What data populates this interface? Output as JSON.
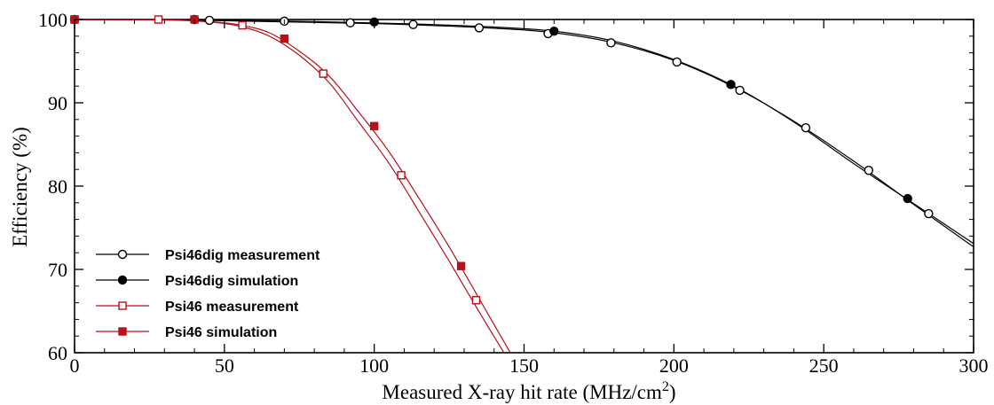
{
  "chart_data": {
    "type": "line",
    "xlabel": "Measured X-ray hit rate (MHz/cm",
    "xlabel_sup": "2",
    "xlabel_end": ")",
    "ylabel": "Efficiency (%)",
    "xlim": [
      0,
      300
    ],
    "ylim": [
      60,
      100
    ],
    "xticks": [
      "0",
      "50",
      "100",
      "150",
      "200",
      "250",
      "300"
    ],
    "yticks": [
      "60",
      "70",
      "80",
      "90",
      "100"
    ],
    "grid": false,
    "legend_position": "bottom-left",
    "series": [
      {
        "name": "Psi46dig measurement",
        "color": "#000000",
        "marker": "open-circle",
        "x": [
          0,
          45,
          70,
          92,
          113,
          135,
          158,
          179,
          201,
          222,
          244,
          265,
          285
        ],
        "y": [
          100,
          99.9,
          99.8,
          99.6,
          99.4,
          99.0,
          98.3,
          97.2,
          94.9,
          91.5,
          87.0,
          81.9,
          76.7
        ],
        "curve_x": [
          0,
          30,
          50,
          80,
          110,
          140,
          160,
          180,
          200,
          220,
          240,
          260,
          280,
          300
        ],
        "curve_y": [
          100,
          99.95,
          99.85,
          99.65,
          99.4,
          98.95,
          98.4,
          97.2,
          95.1,
          91.9,
          87.8,
          83.0,
          77.8,
          72.7
        ]
      },
      {
        "name": "Psi46dig simulation",
        "color": "#000000",
        "marker": "filled-circle",
        "x": [
          40,
          100,
          160,
          219,
          278
        ],
        "y": [
          100,
          99.7,
          98.6,
          92.2,
          78.5
        ],
        "curve_x": [
          0,
          30,
          50,
          80,
          110,
          140,
          160,
          180,
          200,
          220,
          240,
          260,
          280,
          300
        ],
        "curve_y": [
          100,
          99.97,
          99.9,
          99.75,
          99.5,
          99.1,
          98.6,
          97.4,
          95.2,
          92.0,
          87.7,
          82.7,
          77.9,
          73.1
        ]
      },
      {
        "name": "Psi46 measurement",
        "color": "#b5121b",
        "marker": "open-square",
        "x": [
          0,
          28,
          56,
          83,
          109,
          134
        ],
        "y": [
          100,
          100,
          99.3,
          93.5,
          81.3,
          66.3
        ],
        "curve_x": [
          0,
          30,
          45,
          55,
          65,
          75,
          85,
          95,
          105,
          115,
          125,
          135,
          145
        ],
        "curve_y": [
          100,
          99.95,
          99.7,
          99.2,
          98.0,
          95.7,
          92.4,
          87.6,
          82.7,
          76.9,
          71.0,
          64.9,
          59.0
        ]
      },
      {
        "name": "Psi46 simulation",
        "color": "#b5121b",
        "marker": "filled-square",
        "x": [
          0,
          40,
          70,
          100,
          129
        ],
        "y": [
          100,
          100,
          97.7,
          87.2,
          70.4
        ],
        "curve_x": [
          0,
          30,
          45,
          55,
          65,
          75,
          85,
          95,
          105,
          115,
          125,
          135,
          147
        ],
        "curve_y": [
          100,
          99.97,
          99.75,
          99.35,
          98.4,
          96.2,
          93.2,
          88.8,
          84.1,
          78.5,
          72.7,
          66.5,
          59.0
        ]
      }
    ]
  }
}
